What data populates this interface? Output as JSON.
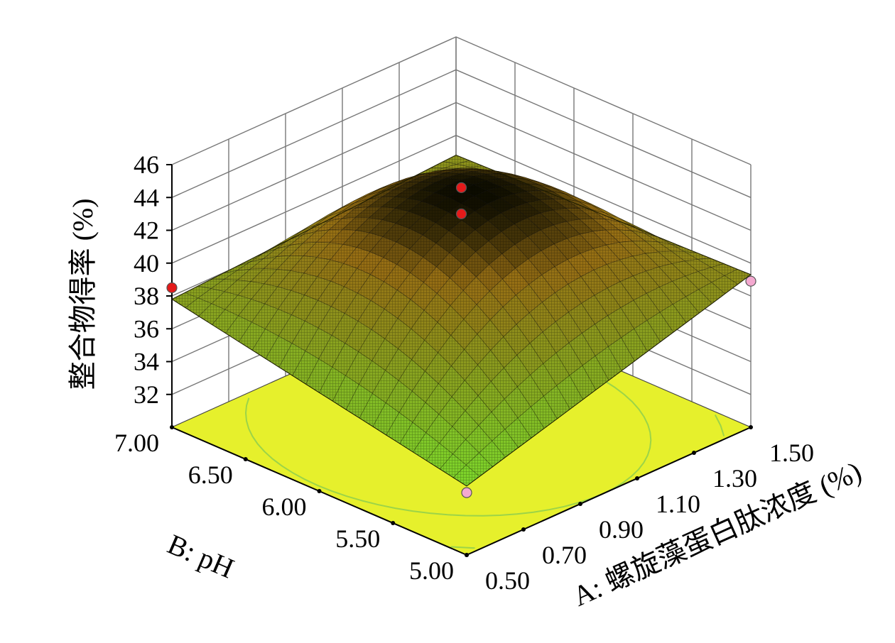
{
  "chart_data": {
    "type": "surface3d",
    "title": "",
    "zlabel": "整合物得率 (%)",
    "xlabel": "A: 螺旋藻蛋白肽浓度 (%)",
    "ylabel": "B: pH",
    "zticks": [
      "32",
      "34",
      "36",
      "38",
      "40",
      "42",
      "44",
      "46"
    ],
    "xticks": [
      "0.50",
      "0.70",
      "0.90",
      "1.10",
      "1.30",
      "1.50"
    ],
    "yticks": [
      "5.00",
      "5.50",
      "6.00",
      "6.50",
      "7.00"
    ],
    "xlim": [
      0.5,
      1.5
    ],
    "ylim": [
      5.0,
      7.0
    ],
    "zlim": [
      30,
      46
    ],
    "surface_corners": [
      {
        "x": 0.5,
        "y": 5.0,
        "z": 34.2
      },
      {
        "x": 1.5,
        "y": 5.0,
        "z": 39.3
      },
      {
        "x": 0.5,
        "y": 7.0,
        "z": 37.8
      },
      {
        "x": 1.5,
        "y": 7.0,
        "z": 38.8
      }
    ],
    "surface_peak": {
      "x": 0.98,
      "y": 6.05,
      "z": 43.6
    },
    "design_points": [
      {
        "x": 1.0,
        "y": 6.0,
        "z": 44.6,
        "position": "above"
      },
      {
        "x": 1.0,
        "y": 6.0,
        "z": 43.0,
        "position": "above"
      },
      {
        "x": 0.5,
        "y": 7.0,
        "z": 38.5,
        "position": "above"
      },
      {
        "x": 1.5,
        "y": 5.0,
        "z": 38.9,
        "position": "below"
      },
      {
        "x": 0.5,
        "y": 5.0,
        "z": 33.8,
        "position": "below"
      }
    ],
    "grid": true,
    "colors": {
      "surface_low": "#7ed42a",
      "surface_high": "#0c0c00",
      "floor": "#e6f02c",
      "point_above": "#e41a1a",
      "point_below": "#f4a9d0",
      "contour": "#9cd448",
      "contour_center": "#f08c1e"
    }
  }
}
